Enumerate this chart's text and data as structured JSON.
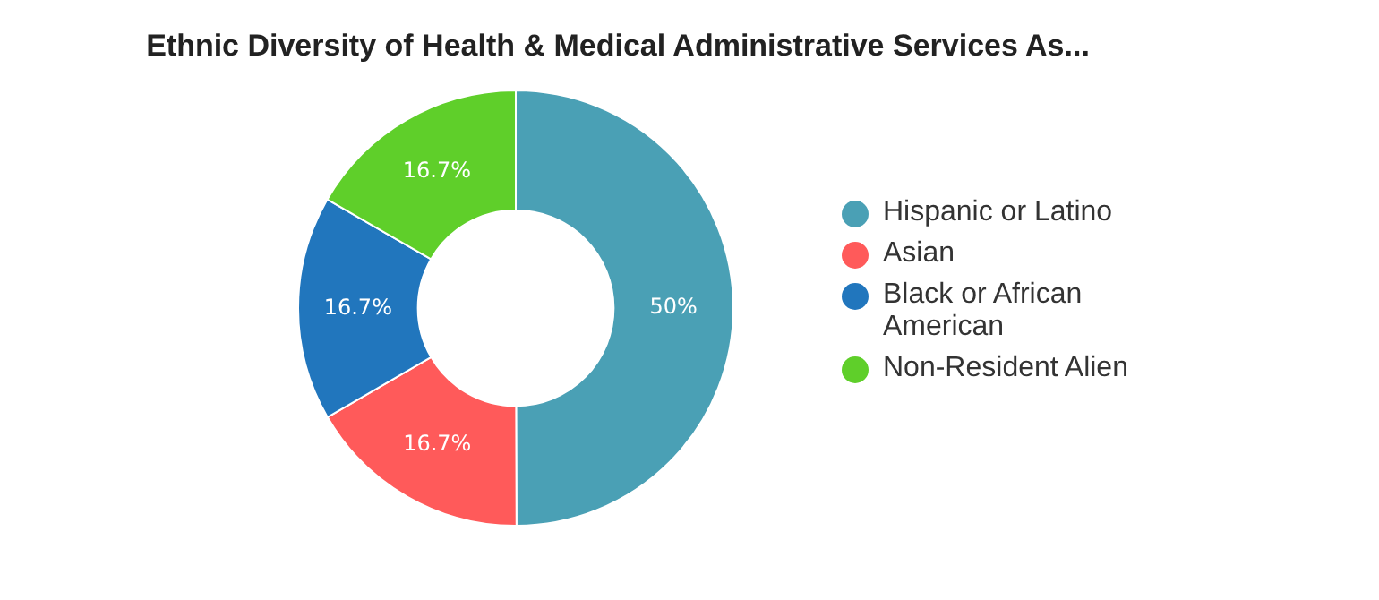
{
  "chart_data": {
    "type": "donut",
    "title": "Ethnic Diversity of Health & Medical Administrative Services As...",
    "categories": [
      "Hispanic or Latino",
      "Asian",
      "Black or African American",
      "Non-Resident Alien"
    ],
    "values": [
      50,
      16.7,
      16.7,
      16.7
    ],
    "colors": [
      "#4aa0b5",
      "#ff5a5a",
      "#2176bd",
      "#5fcf2a"
    ],
    "value_labels": [
      "50%",
      "16.7%",
      "16.7%",
      "16.7%"
    ],
    "legend": "right"
  }
}
